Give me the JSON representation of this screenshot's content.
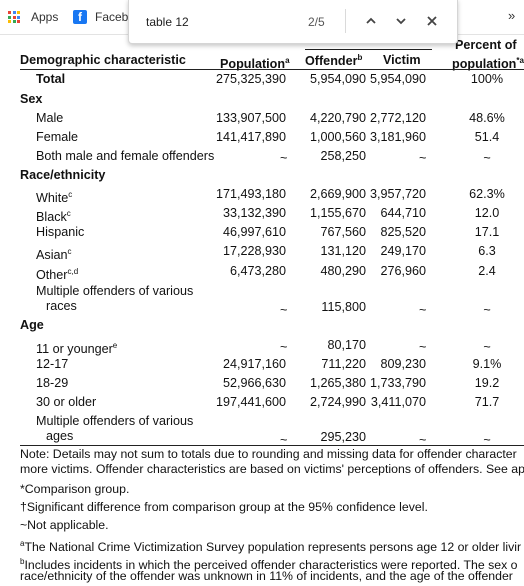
{
  "bookmarks": {
    "apps_label": "Apps",
    "facebook_label": "Faceb",
    "facebook_icon": "f",
    "more_chevron": "»"
  },
  "find": {
    "query": "table 12",
    "count": "2/5",
    "prev_icon": "chevron-up-icon",
    "next_icon": "chevron-down-icon",
    "close_icon": "close-icon"
  },
  "table": {
    "headers": {
      "characteristic": "Demographic characteristic",
      "population": "Population",
      "population_sup": "a",
      "offender": "Offender",
      "offender_sup": "b",
      "victim": "Victim",
      "percent_line1": "Percent of",
      "percent_line2": "population",
      "percent_sup": "*a"
    },
    "total": {
      "label": "Total",
      "population": "275,325,390",
      "offender": "5,954,090",
      "victim": "5,954,090",
      "percent": "100%"
    },
    "sex": {
      "label": "Sex",
      "rows": [
        {
          "label": "Male",
          "population": "133,907,500",
          "offender": "4,220,790",
          "victim": "2,772,120",
          "percent": "48.6%"
        },
        {
          "label": "Female",
          "population": "141,417,890",
          "offender": "1,000,560",
          "victim": "3,181,960",
          "percent": "51.4"
        },
        {
          "label": "Both male and female offenders",
          "population": "~",
          "offender": "258,250",
          "victim": "~",
          "percent": "~"
        }
      ]
    },
    "race": {
      "label": "Race/ethnicity",
      "white": {
        "label": "White",
        "sup": "c",
        "population": "171,493,180",
        "offender": "2,669,900",
        "victim": "3,957,720",
        "percent": "62.3%"
      },
      "black": {
        "label": "Black",
        "sup": "c",
        "population": "33,132,390",
        "offender": "1,155,670",
        "victim": "644,710",
        "percent": "12.0"
      },
      "hispanic": {
        "label": "Hispanic",
        "population": "46,997,610",
        "offender": "767,560",
        "victim": "825,520",
        "percent": "17.1"
      },
      "asian": {
        "label": "Asian",
        "sup": "c",
        "population": "17,228,930",
        "offender": "131,120",
        "victim": "249,170",
        "percent": "6.3"
      },
      "other": {
        "label": "Other",
        "sup": "c,d",
        "population": "6,473,280",
        "offender": "480,290",
        "victim": "276,960",
        "percent": "2.4"
      },
      "multiple": {
        "label_line1": "Multiple offenders of various",
        "label_line2": "races",
        "population": "~",
        "offender": "115,800",
        "victim": "~",
        "percent": "~"
      }
    },
    "age": {
      "label": "Age",
      "younger": {
        "label": "11 or younger",
        "sup": "e",
        "population": "~",
        "offender": "80,170",
        "victim": "~",
        "percent": "~"
      },
      "a12": {
        "label": "12-17",
        "population": "24,917,160",
        "offender": "711,220",
        "victim": "809,230",
        "percent": "9.1%"
      },
      "a18": {
        "label": "18-29",
        "population": "52,966,630",
        "offender": "1,265,380",
        "victim": "1,733,790",
        "percent": "19.2"
      },
      "a30": {
        "label": "30 or older",
        "population": "197,441,600",
        "offender": "2,724,990",
        "victim": "3,411,070",
        "percent": "71.7"
      },
      "multiple": {
        "label_line1": "Multiple offenders of various",
        "label_line2": "ages",
        "population": "~",
        "offender": "295,230",
        "victim": "~",
        "percent": "~"
      }
    }
  },
  "notes": {
    "n1": "Note: Details may not sum to totals due to rounding and missing data for offender character",
    "n2": "more victims. Offender characteristics are based on victims' perceptions of offenders. See ap",
    "n3": "*Comparison group.",
    "n4": "†Significant difference from comparison group at the 95% confidence level.",
    "n5": "~Not applicable.",
    "n6_sup": "a",
    "n6": "The National Crime Victimization Survey population represents persons age 12 or older livir",
    "n7_sup": "b",
    "n7": "Includes incidents in which the perceived offender characteristics were reported. The sex o",
    "n8": "race/ethnicity of the offender was unknown in 11% of incidents, and the age of the offender"
  }
}
